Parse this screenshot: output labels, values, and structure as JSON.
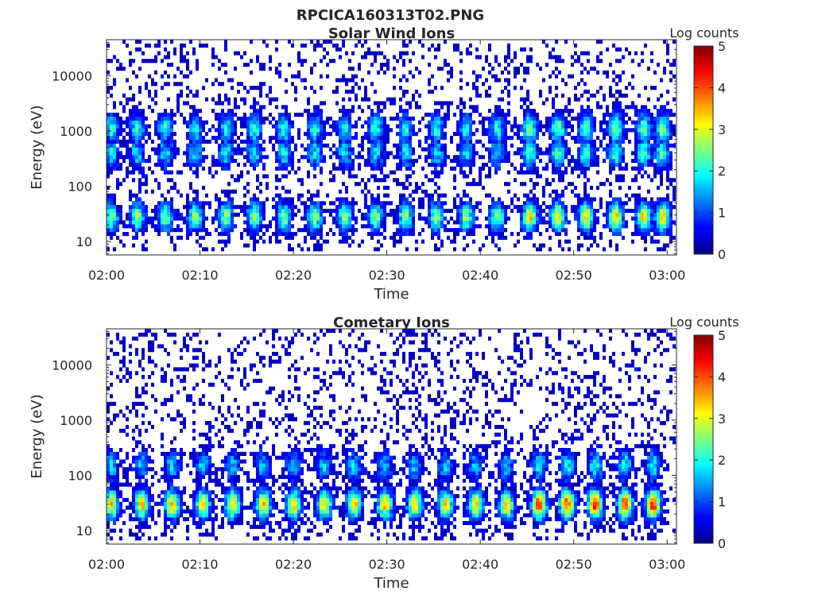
{
  "figure": {
    "title": "RPCICA160313T02.PNG"
  },
  "colorbar": {
    "label": "Log counts",
    "min": 0,
    "max": 5,
    "ticks": [
      "0",
      "1",
      "2",
      "3",
      "4",
      "5"
    ],
    "colormap": "jet"
  },
  "chart_data": [
    {
      "type": "heatmap",
      "title": "Solar Wind Ions",
      "xlabel": "Time",
      "ylabel": "Energy (eV)",
      "y_scale": "log",
      "ylim": [
        5.7,
        45000
      ],
      "xlim": [
        "02:00",
        "03:01"
      ],
      "xticks": [
        "02:00",
        "02:10",
        "02:20",
        "02:30",
        "02:40",
        "02:50",
        "03:00"
      ],
      "yticks": [
        {
          "value": 10,
          "label": "10"
        },
        {
          "value": 100,
          "label": "100"
        },
        {
          "value": 1000,
          "label": "1000"
        },
        {
          "value": 10000,
          "label": "10000"
        }
      ],
      "colorbar_range": [
        0,
        5
      ],
      "bursts_minutes": [
        0.5,
        3.3,
        6.3,
        9.5,
        12.8,
        15.8,
        19.0,
        22.3,
        25.5,
        28.8,
        32.0,
        35.3,
        38.5,
        41.8,
        45.3,
        48.3,
        51.3,
        54.5,
        57.5,
        59.5
      ],
      "bands": [
        {
          "center_eV": 1100,
          "peak_log_counts": 2.0
        },
        {
          "center_eV": 400,
          "peak_log_counts": 1.8
        },
        {
          "center_eV": 28,
          "peak_log_counts": 2.6
        }
      ]
    },
    {
      "type": "heatmap",
      "title": "Cometary Ions",
      "xlabel": "Time",
      "ylabel": "Energy (eV)",
      "y_scale": "log",
      "ylim": [
        5.7,
        45000
      ],
      "xlim": [
        "02:00",
        "03:01"
      ],
      "xticks": [
        "02:00",
        "02:10",
        "02:20",
        "02:30",
        "02:40",
        "02:50",
        "03:00"
      ],
      "yticks": [
        {
          "value": 10,
          "label": "10"
        },
        {
          "value": 100,
          "label": "100"
        },
        {
          "value": 1000,
          "label": "1000"
        },
        {
          "value": 10000,
          "label": "10000"
        }
      ],
      "colorbar_range": [
        0,
        5
      ],
      "bursts_minutes": [
        0.5,
        3.8,
        7.0,
        10.3,
        13.5,
        16.8,
        20.0,
        23.3,
        26.5,
        29.8,
        33.0,
        36.3,
        39.5,
        42.8,
        46.3,
        49.3,
        52.3,
        55.5,
        58.5
      ],
      "bands": [
        {
          "center_eV": 150,
          "peak_log_counts": 1.6
        },
        {
          "center_eV": 30,
          "peak_log_counts": 3.4
        }
      ]
    }
  ]
}
